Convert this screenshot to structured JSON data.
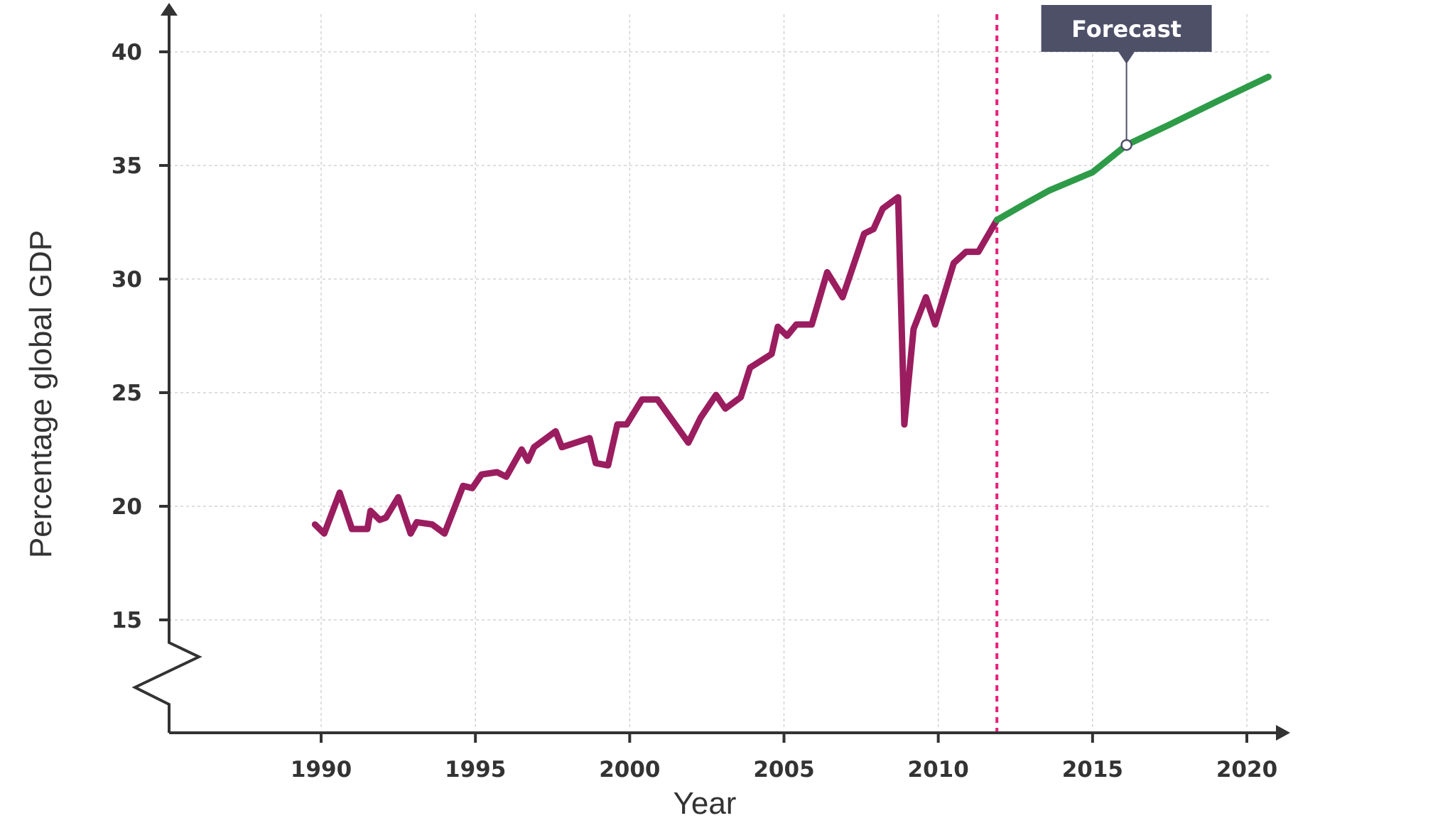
{
  "chart_data": {
    "type": "line",
    "xlabel": "Year",
    "ylabel": "Percentage global GDP",
    "xlim": [
      1985,
      2021.5
    ],
    "ylim": [
      12,
      41
    ],
    "xticks": [
      1990,
      1995,
      2000,
      2005,
      2010,
      2015,
      2020
    ],
    "yticks": [
      15,
      20,
      25,
      30,
      35,
      40
    ],
    "grid": true,
    "y_axis_break": true,
    "colors": {
      "historical": "#9a1d5f",
      "forecast": "#2e9b48",
      "divider": "#e8207a",
      "annotation_bg": "#4e5068"
    },
    "divider_x": 2011.9,
    "annotation": {
      "text": "Forecast",
      "x": 2016.1,
      "y": 35.9
    },
    "series": [
      {
        "key": "historical",
        "x": [
          1989.8,
          1990.1,
          1990.6,
          1991.0,
          1991.5,
          1991.6,
          1991.9,
          1992.1,
          1992.5,
          1992.9,
          1993.1,
          1993.6,
          1994.0,
          1994.6,
          1994.9,
          1995.2,
          1995.7,
          1996.0,
          1996.5,
          1996.7,
          1996.9,
          1997.2,
          1997.6,
          1997.8,
          1998.7,
          1998.9,
          1999.3,
          1999.6,
          1999.9,
          2000.4,
          2000.9,
          2001.9,
          2002.3,
          2002.8,
          2003.1,
          2003.6,
          2003.9,
          2004.6,
          2004.8,
          2005.1,
          2005.4,
          2005.9,
          2006.4,
          2006.9,
          2007.6,
          2007.9,
          2008.2,
          2008.7,
          2008.9,
          2009.2,
          2009.6,
          2009.9,
          2010.5,
          2010.9,
          2011.3,
          2011.9
        ],
        "y": [
          19.2,
          18.8,
          20.6,
          19.0,
          19.0,
          19.8,
          19.4,
          19.5,
          20.4,
          18.8,
          19.3,
          19.2,
          18.8,
          20.9,
          20.8,
          21.4,
          21.5,
          21.3,
          22.5,
          22.0,
          22.6,
          22.9,
          23.3,
          22.6,
          23.0,
          21.9,
          21.8,
          23.6,
          23.6,
          24.7,
          24.7,
          22.8,
          23.9,
          24.9,
          24.3,
          24.8,
          26.1,
          26.7,
          27.9,
          27.5,
          28.0,
          28.0,
          30.3,
          29.2,
          32.0,
          32.2,
          33.1,
          33.6,
          23.6,
          27.8,
          29.2,
          28.0,
          30.7,
          31.2,
          31.2,
          32.6
        ]
      },
      {
        "key": "forecast",
        "x": [
          2011.9,
          2012.8,
          2013.6,
          2015.0,
          2016.1,
          2017.5,
          2019.0,
          2020.7
        ],
        "y": [
          32.6,
          33.3,
          33.9,
          34.7,
          35.9,
          36.8,
          37.8,
          38.9
        ]
      }
    ]
  }
}
